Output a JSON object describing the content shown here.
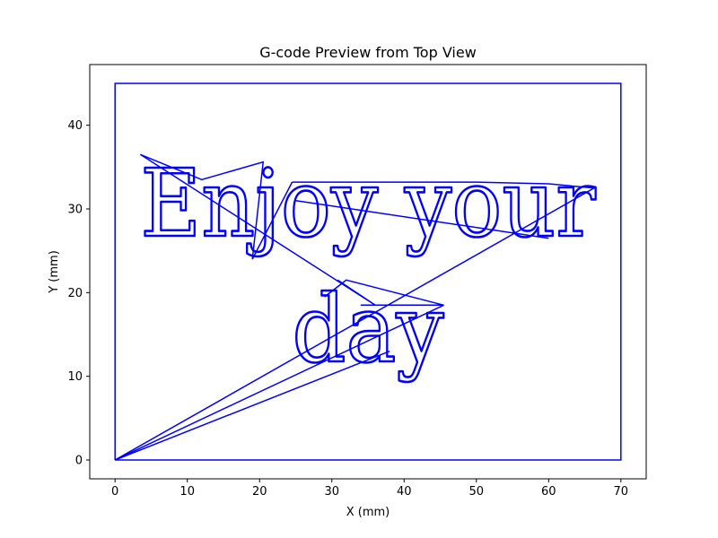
{
  "chart_data": {
    "type": "line",
    "title": "G-code Preview from Top View",
    "xlabel": "X (mm)",
    "ylabel": "Y (mm)",
    "xlim": [
      -3.5,
      73.5
    ],
    "ylim": [
      -2.25,
      47.25
    ],
    "x_ticks": [
      0,
      10,
      20,
      30,
      40,
      50,
      60,
      70
    ],
    "y_ticks": [
      0,
      10,
      20,
      30,
      40
    ],
    "grid": false,
    "series_color": "#0000ff",
    "text_paths": [
      {
        "text": "Enjoy your",
        "x_start": 3.5,
        "x_end": 66.5,
        "baseline_y": 26.8
      },
      {
        "text": "day",
        "x_start": 24.5,
        "x_end": 45.5,
        "baseline_y": 11.8
      }
    ],
    "series": [
      {
        "values": [
          [
            0,
            0
          ],
          [
            0,
            45
          ],
          [
            70,
            45
          ],
          [
            70,
            0
          ],
          [
            0,
            0
          ]
        ]
      },
      {
        "values": [
          [
            0,
            0
          ],
          [
            66.3,
            32.5
          ],
          [
            60,
            33
          ],
          [
            50,
            33.2
          ],
          [
            24.5,
            33.2
          ]
        ]
      },
      {
        "values": [
          [
            3.5,
            36.5
          ],
          [
            12,
            33.5
          ],
          [
            20.5,
            35.6
          ],
          [
            19,
            24
          ],
          [
            24.5,
            33.2
          ]
        ]
      },
      {
        "values": [
          [
            3.5,
            36.5
          ],
          [
            36,
            18.5
          ],
          [
            30.8,
            21.5
          ]
        ]
      },
      {
        "values": [
          [
            25,
            31
          ],
          [
            60,
            26.5
          ]
        ]
      },
      {
        "values": [
          [
            0,
            0
          ],
          [
            45.5,
            18.5
          ],
          [
            34,
            18.5
          ]
        ]
      },
      {
        "values": [
          [
            0,
            0
          ],
          [
            38,
            13
          ]
        ]
      },
      {
        "values": [
          [
            29,
            19.5
          ],
          [
            32,
            21.5
          ],
          [
            45.5,
            18.5
          ]
        ]
      }
    ]
  }
}
